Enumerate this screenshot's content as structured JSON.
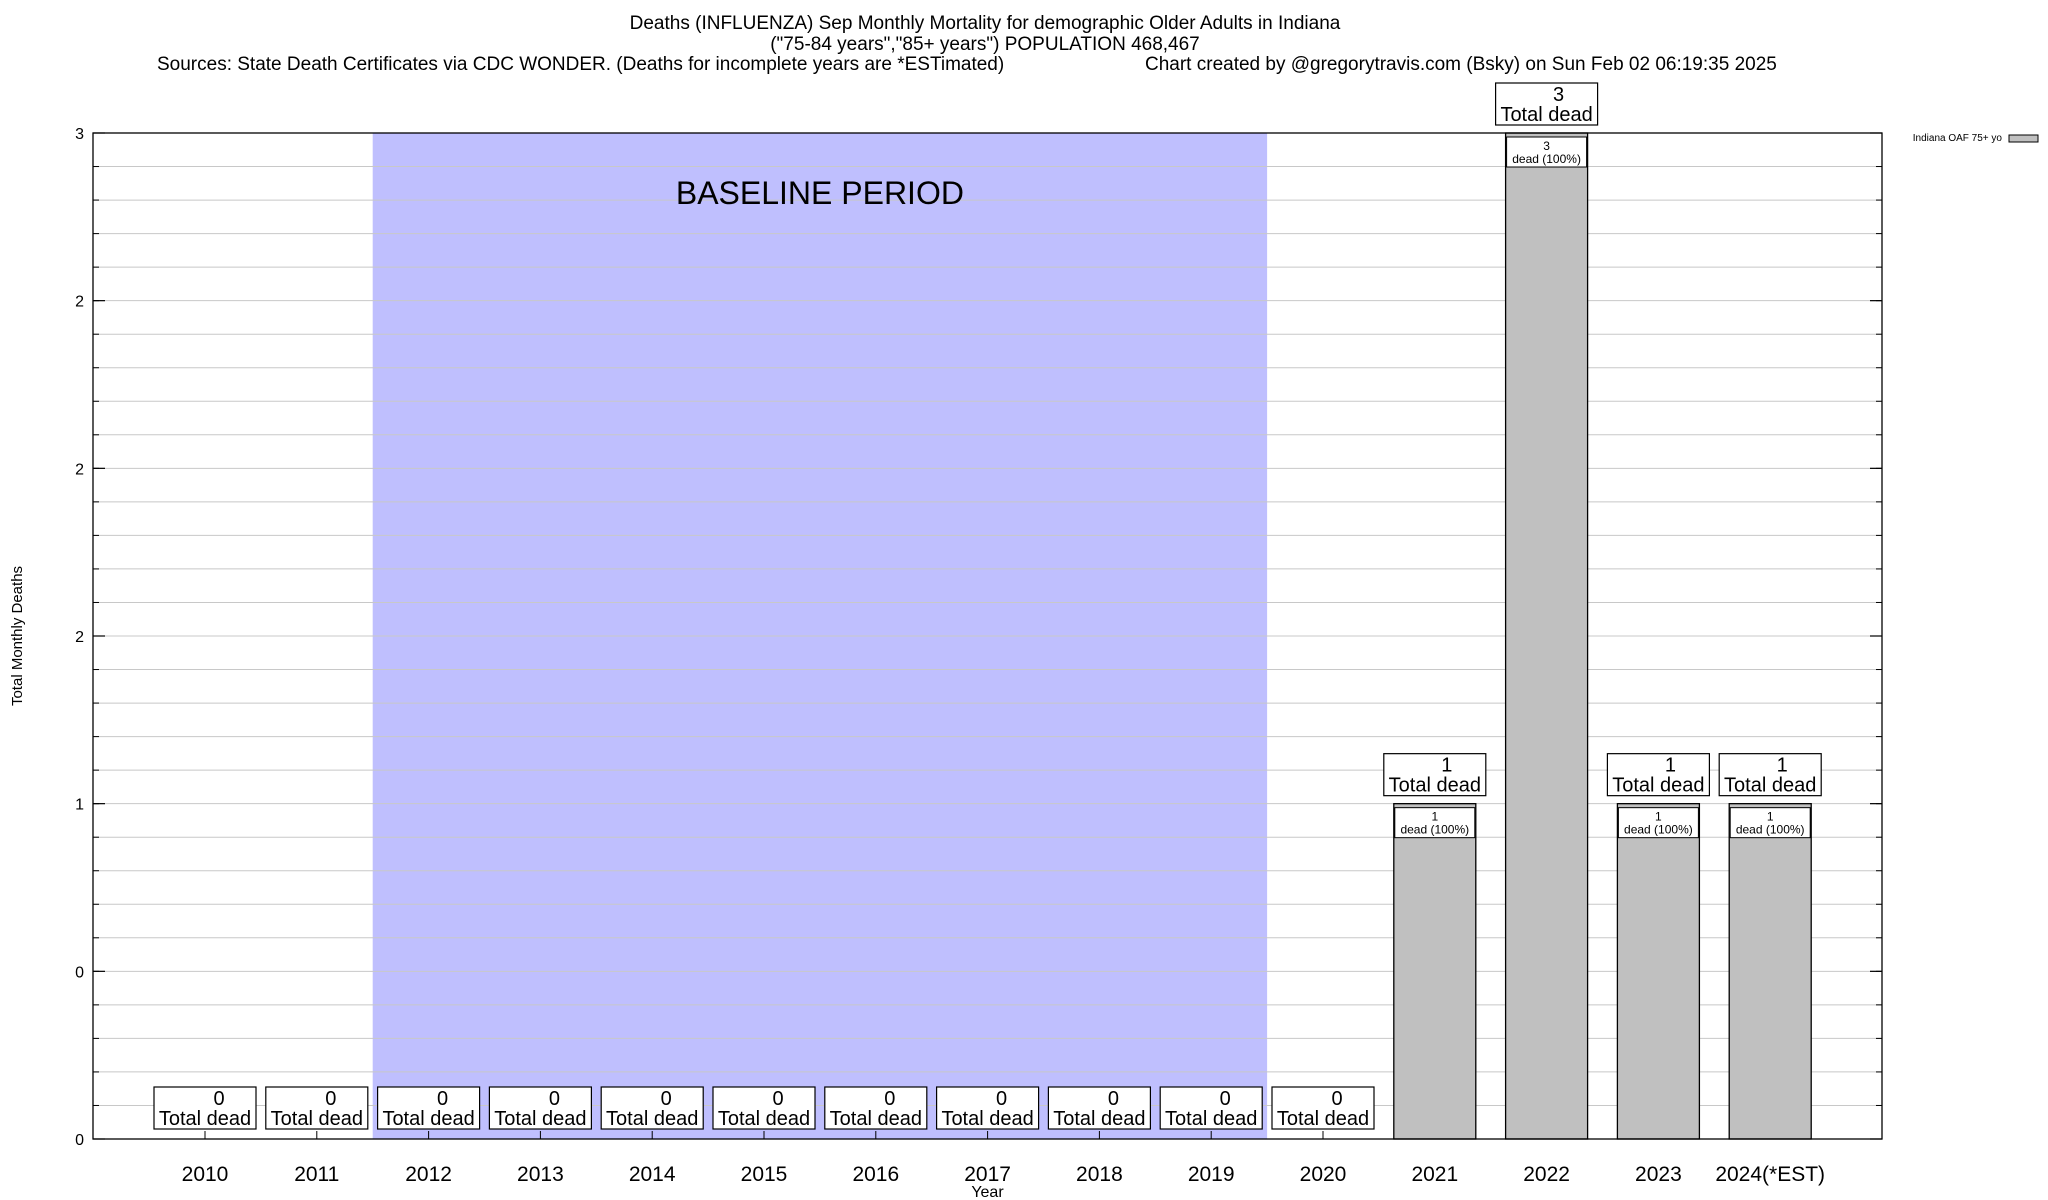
{
  "chart_data": {
    "type": "bar",
    "title": "Deaths (INFLUENZA) Sep Monthly Mortality for demographic Older Adults in Indiana",
    "subtitle": "(\"75-84 years\",\"85+ years\") POPULATION 468,467",
    "sources": "Sources: State Death Certificates via CDC WONDER. (Deaths for incomplete years are *ESTimated)",
    "credit": "Chart created by @gregorytravis.com (Bsky) on Sun Feb 02 06:19:35 2025",
    "xlabel": "Year",
    "ylabel": "Total Monthly Deaths",
    "categories": [
      "2010",
      "2011",
      "2012",
      "2013",
      "2014",
      "2015",
      "2016",
      "2017",
      "2018",
      "2019",
      "2020",
      "2021",
      "2022",
      "2023",
      "2024(*EST)"
    ],
    "series": [
      {
        "name": "Indiana OAF 75+ yo",
        "values": [
          0,
          0,
          0,
          0,
          0,
          0,
          0,
          0,
          0,
          0,
          0,
          1,
          3,
          1,
          1
        ],
        "color": "#c0c0c0"
      }
    ],
    "ylim": [
      0,
      3
    ],
    "yticks": [
      0,
      0.5,
      1,
      1.5,
      2,
      2.5,
      3
    ],
    "ytick_labels": [
      "0",
      "0",
      "1",
      "2",
      "2",
      "2",
      "3"
    ],
    "total_label_suffix": "Total dead",
    "bar_label_suffix": "dead (100%)",
    "baseline": {
      "label": "BASELINE PERIOD",
      "from": "2012",
      "to": "2019",
      "color": "#bfbffe"
    },
    "grid": true,
    "legend_position": "top-right"
  }
}
